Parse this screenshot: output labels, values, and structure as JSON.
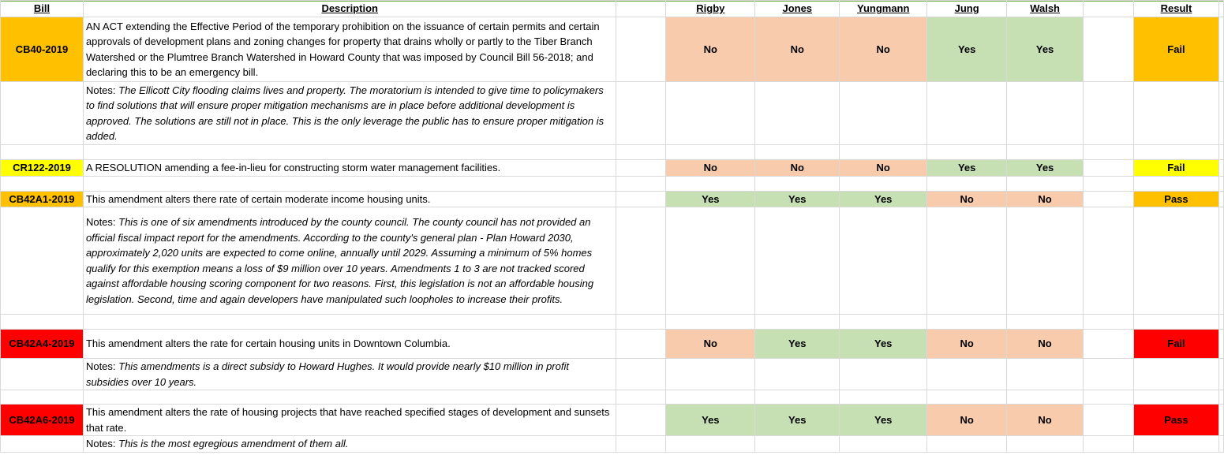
{
  "headers": {
    "bill": "Bill",
    "description": "Description",
    "rigby": "Rigby",
    "jones": "Jones",
    "yungmann": "Yungmann",
    "jung": "Jung",
    "walsh": "Walsh",
    "result": "Result"
  },
  "notes_prefix": "Notes: ",
  "rows": [
    {
      "bill": "CB40-2019",
      "description": "AN ACT extending the Effective Period of the temporary prohibition on the issuance of certain permits and certain approvals of development plans and zoning changes for property that drains wholly or partly to the Tiber Branch Watershed or the Plumtree Branch Watershed in Howard County that was imposed by Council Bill 56-2018; and declaring this to be an emergency bill.",
      "votes": [
        "No",
        "No",
        "No",
        "Yes",
        "Yes"
      ],
      "result": "Fail",
      "notes": "The Ellicott City flooding claims lives and property. The moratorium is intended to give time to policymakers to find solutions that will ensure proper mitigation mechanisms are in place before additional development is approved. The solutions are still not in place. This is the only leverage the public has to ensure proper mitigation is added."
    },
    {
      "bill": "CR122-2019",
      "description": "A RESOLUTION amending a fee-in-lieu for constructing storm water management facilities.",
      "votes": [
        "No",
        "No",
        "No",
        "Yes",
        "Yes"
      ],
      "result": "Fail"
    },
    {
      "bill": "CB42A1-2019",
      "description": "This amendment alters there rate of certain moderate income housing units.",
      "votes": [
        "Yes",
        "Yes",
        "Yes",
        "No",
        "No"
      ],
      "result": "Pass",
      "notes": "This is one of six amendments introduced by the county council. The county council has not provided an official fiscal impact report for the amendments. According to the county's general plan - Plan Howard 2030, approximately 2,020 units are expected to come online, annually until 2029. Assuming a minimum of 5% homes qualify for this exemption means a loss of $9 million over 10 years. Amendments 1 to 3 are not tracked scored against affordable housing scoring component for two reasons. First, this legislation is not an affordable housing legislation. Second, time and again developers have manipulated such loopholes to increase their profits."
    },
    {
      "bill": "CB42A4-2019",
      "description": "This amendment alters the rate for certain housing units in Downtown Columbia.",
      "votes": [
        "No",
        "Yes",
        "Yes",
        "No",
        "No"
      ],
      "result": "Fail",
      "notes": "This amendments is a direct subsidy to Howard Hughes. It would provide nearly $10 million in profit subsidies over 10 years."
    },
    {
      "bill": "CB42A6-2019",
      "description": "This amendment alters the rate of housing projects that have reached specified stages of development and sunsets that rate.",
      "votes": [
        "Yes",
        "Yes",
        "Yes",
        "No",
        "No"
      ],
      "result": "Pass",
      "notes": "This is the most egregious amendment of them all."
    }
  ],
  "colors": {
    "no": "#f8cbad",
    "yes": "#c6e0b4",
    "orange": "#ffc000",
    "yellow": "#ffff00",
    "red": "#ff0000",
    "header_border": "#70ad47"
  }
}
